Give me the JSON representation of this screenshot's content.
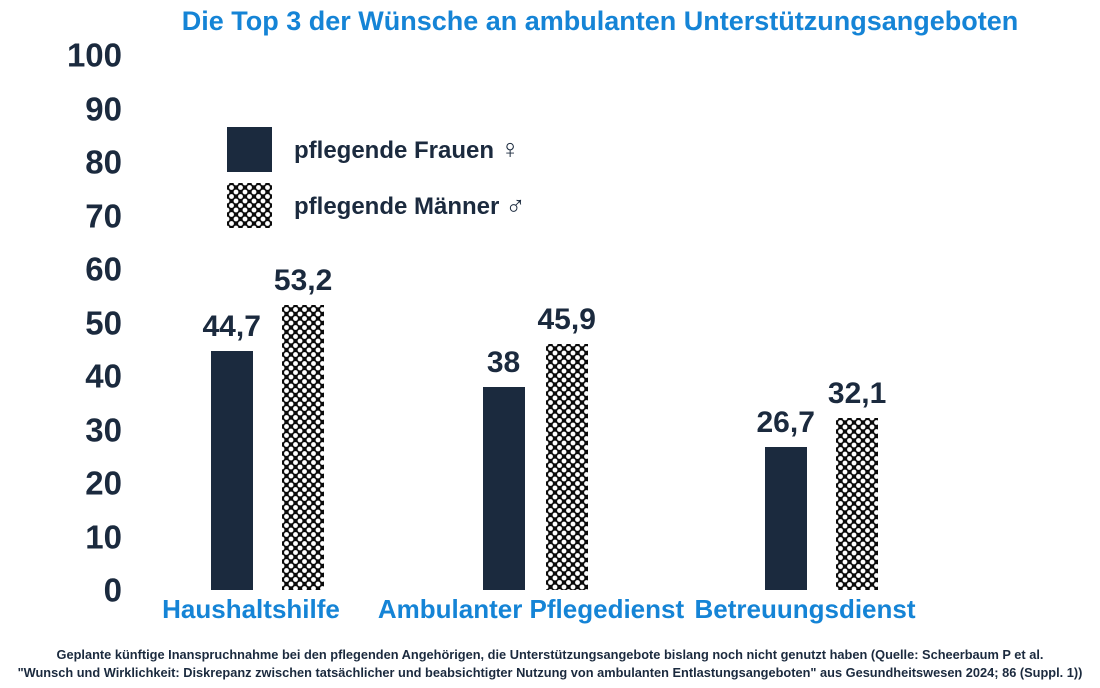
{
  "title": "Die Top 3 der Wünsche an ambulanten Unterstützungsangeboten",
  "legend": {
    "items": [
      {
        "label": "pflegende Frauen",
        "symbol": "♀",
        "swatch": "solid"
      },
      {
        "label": "pflegende Männer",
        "symbol": "♂",
        "swatch": "crosshatch"
      }
    ]
  },
  "chart_data": {
    "type": "bar",
    "categories": [
      "Haushaltshilfe",
      "Ambulanter Pflegedienst",
      "Betreuungsdienst"
    ],
    "series": [
      {
        "name": "pflegende Frauen",
        "style": "solid",
        "values": [
          44.7,
          38,
          26.7
        ],
        "labels": [
          "44,7",
          "38",
          "26,7"
        ]
      },
      {
        "name": "pflegende Männer",
        "style": "crosshatch",
        "values": [
          53.2,
          45.9,
          32.1
        ],
        "labels": [
          "53,2",
          "45,9",
          "32,1"
        ]
      }
    ],
    "title": "Die Top 3 der Wünsche an ambulanten Unterstützungsangeboten",
    "xlabel": "",
    "ylabel": "",
    "ylim": [
      0,
      100
    ],
    "yticks": [
      0,
      10,
      20,
      30,
      40,
      50,
      60,
      70,
      80,
      90,
      100
    ],
    "grid": false,
    "legend_position": "upper-left-inside"
  },
  "footer": {
    "line1": "Geplante künftige Inanspruchnahme bei den pflegenden Angehörigen, die Unterstützungsangebote bislang noch nicht genutzt haben (Quelle: Scheerbaum P et al.",
    "line2": "\"Wunsch und Wirklichkeit: Diskrepanz zwischen tatsächlicher und beabsichtigter Nutzung von ambulanten Entlastungsangeboten\" aus Gesundheitswesen 2024; 86 (Suppl. 1))"
  },
  "colors": {
    "navy": "#1b2a3e",
    "blue": "#1584d6",
    "pattern_black": "#0b0b0b",
    "background": "#ffffff"
  }
}
